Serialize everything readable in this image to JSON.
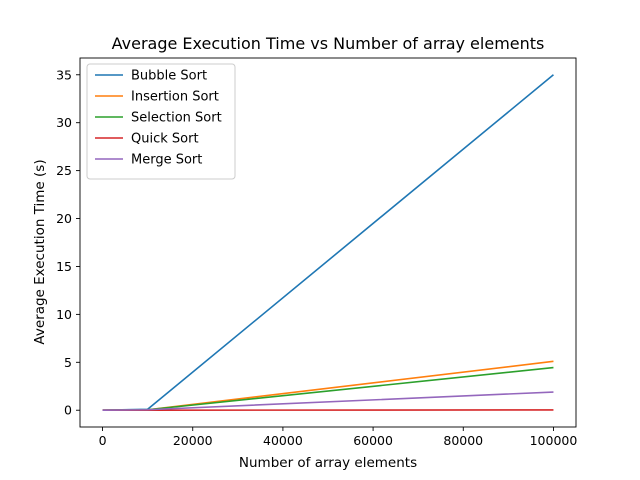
{
  "chart_data": {
    "type": "line",
    "title": "Average Execution Time vs Number of array elements",
    "xlabel": "Number of array elements",
    "ylabel": "Average Execution Time (s)",
    "xlim": [
      -5000,
      105000
    ],
    "ylim": [
      -1.75,
      36.75
    ],
    "xticks": [
      0,
      20000,
      40000,
      60000,
      80000,
      100000
    ],
    "yticks": [
      0,
      5,
      10,
      15,
      20,
      25,
      30,
      35
    ],
    "grid": false,
    "legend_position": "top-left",
    "series": [
      {
        "name": "Bubble Sort",
        "color": "#1f77b4",
        "x": [
          0,
          10000,
          100000
        ],
        "y": [
          0,
          0.1,
          35.0
        ]
      },
      {
        "name": "Insertion Sort",
        "color": "#ff7f0e",
        "x": [
          0,
          10000,
          100000
        ],
        "y": [
          0,
          0.05,
          5.1
        ]
      },
      {
        "name": "Selection Sort",
        "color": "#2ca02c",
        "x": [
          0,
          10000,
          100000
        ],
        "y": [
          0,
          0.05,
          4.45
        ]
      },
      {
        "name": "Quick Sort",
        "color": "#d62728",
        "x": [
          0,
          10000,
          100000
        ],
        "y": [
          0,
          0.005,
          0.03
        ]
      },
      {
        "name": "Merge Sort",
        "color": "#9467bd",
        "x": [
          0,
          10000,
          100000
        ],
        "y": [
          0,
          0.05,
          1.9
        ]
      }
    ]
  }
}
